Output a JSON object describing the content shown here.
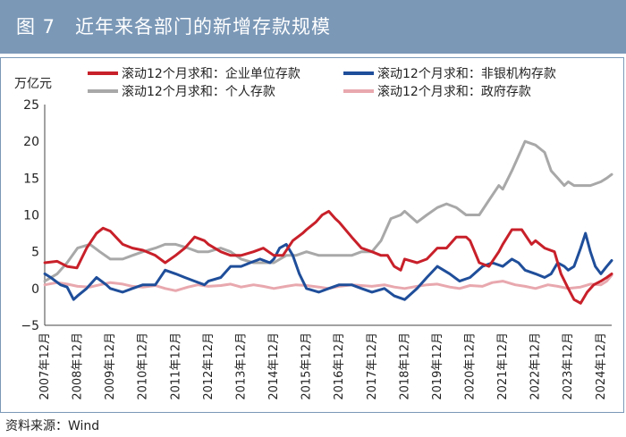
{
  "header": {
    "title": "图 7　近年来各部门的新增存款规模"
  },
  "footer": {
    "source": "资料来源：Wind"
  },
  "chart_data": {
    "type": "line",
    "title": "",
    "ylabel": "万亿元",
    "xlabel": "",
    "ylim": [
      -5,
      25
    ],
    "yticks": [
      -5,
      0,
      5,
      10,
      15,
      20,
      25
    ],
    "xlim": [
      2007.917,
      2025.25
    ],
    "xtick_labels": [
      "2007年12月",
      "2008年12月",
      "2009年12月",
      "2010年12月",
      "2011年12月",
      "2012年12月",
      "2013年12月",
      "2014年12月",
      "2015年12月",
      "2016年12月",
      "2017年12月",
      "2018年12月",
      "2019年12月",
      "2020年12月",
      "2021年12月",
      "2022年12月",
      "2023年12月",
      "2024年12月"
    ],
    "legend_position": "top",
    "grid": false,
    "series": [
      {
        "name": "滚动12个月求和：企业单位存款",
        "color": "#c8202a",
        "x": [
          2007.92,
          2008.3,
          2008.6,
          2008.9,
          2009.2,
          2009.5,
          2009.7,
          2009.92,
          2010.3,
          2010.6,
          2010.92,
          2011.3,
          2011.6,
          2011.92,
          2012.2,
          2012.5,
          2012.8,
          2012.92,
          2013.3,
          2013.6,
          2013.92,
          2014.3,
          2014.6,
          2014.92,
          2015.2,
          2015.5,
          2015.8,
          2015.92,
          2016.2,
          2016.4,
          2016.6,
          2016.8,
          2016.92,
          2017.3,
          2017.6,
          2017.92,
          2018.2,
          2018.4,
          2018.6,
          2018.8,
          2018.92,
          2019.3,
          2019.6,
          2019.92,
          2020.2,
          2020.5,
          2020.8,
          2020.92,
          2021.2,
          2021.5,
          2021.8,
          2021.92,
          2022.2,
          2022.5,
          2022.8,
          2022.92,
          2023.2,
          2023.5,
          2023.7,
          2023.92,
          2024.1,
          2024.3,
          2024.5,
          2024.7,
          2024.92,
          2025.1,
          2025.25
        ],
        "y": [
          3.5,
          3.7,
          3.0,
          2.8,
          5.5,
          7.5,
          8.2,
          7.8,
          6.0,
          5.5,
          5.2,
          4.5,
          3.5,
          4.5,
          5.5,
          7.0,
          6.5,
          6.0,
          5.0,
          4.5,
          4.5,
          5.0,
          5.5,
          4.5,
          4.5,
          6.5,
          7.5,
          8.0,
          9.0,
          10.0,
          10.5,
          9.5,
          9.0,
          7.0,
          5.5,
          5.0,
          4.5,
          4.5,
          3.0,
          2.5,
          4.0,
          3.5,
          4.0,
          5.5,
          5.5,
          7.0,
          7.0,
          6.5,
          3.5,
          3.0,
          5.0,
          6.0,
          8.0,
          8.0,
          6.0,
          6.5,
          5.5,
          5.0,
          2.0,
          0.0,
          -1.5,
          -2.0,
          -0.5,
          0.5,
          1.0,
          1.5,
          2.0
        ]
      },
      {
        "name": "滚动12个月求和：非银机构存款",
        "color": "#1f4e9a",
        "x": [
          2007.92,
          2008.1,
          2008.4,
          2008.6,
          2008.8,
          2008.92,
          2009.2,
          2009.5,
          2009.8,
          2009.92,
          2010.3,
          2010.6,
          2010.92,
          2011.3,
          2011.6,
          2011.92,
          2012.2,
          2012.5,
          2012.8,
          2012.92,
          2013.3,
          2013.6,
          2013.92,
          2014.2,
          2014.5,
          2014.8,
          2014.92,
          2015.1,
          2015.3,
          2015.5,
          2015.7,
          2015.92,
          2016.3,
          2016.6,
          2016.92,
          2017.3,
          2017.6,
          2017.92,
          2018.3,
          2018.6,
          2018.92,
          2019.3,
          2019.6,
          2019.92,
          2020.3,
          2020.6,
          2020.92,
          2021.3,
          2021.6,
          2021.92,
          2022.2,
          2022.4,
          2022.6,
          2022.92,
          2023.2,
          2023.4,
          2023.6,
          2023.8,
          2023.92,
          2024.1,
          2024.3,
          2024.45,
          2024.6,
          2024.75,
          2024.92,
          2025.1,
          2025.25
        ],
        "y": [
          2.0,
          1.5,
          0.5,
          0.2,
          -1.5,
          -1.0,
          0.0,
          1.5,
          0.5,
          0.0,
          -0.5,
          0.0,
          0.5,
          0.5,
          2.5,
          2.0,
          1.5,
          1.0,
          0.5,
          1.0,
          1.5,
          3.0,
          3.0,
          3.5,
          4.0,
          3.5,
          4.0,
          5.5,
          6.0,
          4.5,
          2.0,
          0.0,
          -0.5,
          0.0,
          0.5,
          0.5,
          0.0,
          -0.5,
          0.0,
          -1.0,
          -1.5,
          0.0,
          1.5,
          3.0,
          2.0,
          1.0,
          1.5,
          3.0,
          3.5,
          3.0,
          4.0,
          3.5,
          2.5,
          2.0,
          1.5,
          2.0,
          3.5,
          3.0,
          2.5,
          3.0,
          5.5,
          7.5,
          5.0,
          3.0,
          2.0,
          3.0,
          3.8
        ]
      },
      {
        "name": "滚动12个月求和：个人存款",
        "color": "#a8a8a8",
        "x": [
          2007.92,
          2008.3,
          2008.6,
          2008.92,
          2009.3,
          2009.6,
          2009.92,
          2010.3,
          2010.6,
          2010.92,
          2011.3,
          2011.6,
          2011.92,
          2012.3,
          2012.6,
          2012.92,
          2013.3,
          2013.6,
          2013.92,
          2014.3,
          2014.6,
          2014.92,
          2015.3,
          2015.6,
          2015.92,
          2016.3,
          2016.6,
          2016.92,
          2017.3,
          2017.6,
          2017.92,
          2018.2,
          2018.5,
          2018.8,
          2018.92,
          2019.3,
          2019.6,
          2019.92,
          2020.2,
          2020.5,
          2020.8,
          2020.92,
          2021.2,
          2021.5,
          2021.8,
          2021.92,
          2022.2,
          2022.4,
          2022.6,
          2022.92,
          2023.2,
          2023.4,
          2023.6,
          2023.8,
          2023.92,
          2024.1,
          2024.3,
          2024.6,
          2024.92,
          2025.1,
          2025.25
        ],
        "y": [
          1.0,
          2.0,
          3.5,
          5.5,
          6.0,
          5.0,
          4.0,
          4.0,
          4.5,
          5.0,
          5.5,
          6.0,
          6.0,
          5.5,
          5.0,
          5.0,
          5.5,
          5.0,
          4.0,
          3.5,
          3.5,
          3.5,
          4.5,
          4.5,
          5.0,
          4.5,
          4.5,
          4.5,
          4.5,
          5.0,
          5.0,
          6.5,
          9.5,
          10.0,
          10.5,
          9.0,
          10.0,
          11.0,
          11.5,
          11.0,
          10.0,
          10.0,
          10.0,
          12.0,
          14.0,
          13.5,
          16.0,
          18.0,
          20.0,
          19.5,
          18.5,
          16.0,
          15.0,
          14.0,
          14.5,
          14.0,
          14.0,
          14.0,
          14.5,
          15.0,
          15.5
        ]
      },
      {
        "name": "滚动12个月求和：政府存款",
        "color": "#e8a8ae",
        "x": [
          2007.92,
          2008.3,
          2008.6,
          2008.92,
          2009.3,
          2009.6,
          2009.92,
          2010.3,
          2010.6,
          2010.92,
          2011.3,
          2011.6,
          2011.92,
          2012.3,
          2012.6,
          2012.92,
          2013.3,
          2013.6,
          2013.92,
          2014.3,
          2014.6,
          2014.92,
          2015.3,
          2015.6,
          2015.92,
          2016.3,
          2016.6,
          2016.92,
          2017.3,
          2017.6,
          2017.92,
          2018.3,
          2018.6,
          2018.92,
          2019.3,
          2019.6,
          2019.92,
          2020.3,
          2020.6,
          2020.92,
          2021.3,
          2021.6,
          2021.92,
          2022.3,
          2022.6,
          2022.92,
          2023.3,
          2023.6,
          2023.92,
          2024.3,
          2024.6,
          2024.92,
          2025.1,
          2025.25
        ],
        "y": [
          0.5,
          0.8,
          0.6,
          0.3,
          0.2,
          0.5,
          0.8,
          0.6,
          0.3,
          0.2,
          0.4,
          0.0,
          -0.3,
          0.2,
          0.5,
          0.3,
          0.4,
          0.6,
          0.2,
          0.5,
          0.3,
          0.0,
          0.3,
          0.5,
          0.4,
          0.2,
          0.0,
          0.3,
          0.5,
          0.4,
          0.3,
          0.5,
          0.2,
          0.0,
          0.3,
          0.5,
          0.6,
          0.2,
          0.0,
          0.4,
          0.3,
          0.8,
          1.0,
          0.5,
          0.3,
          0.0,
          0.5,
          0.3,
          0.0,
          0.2,
          0.6,
          0.5,
          1.0,
          1.8
        ]
      }
    ]
  }
}
